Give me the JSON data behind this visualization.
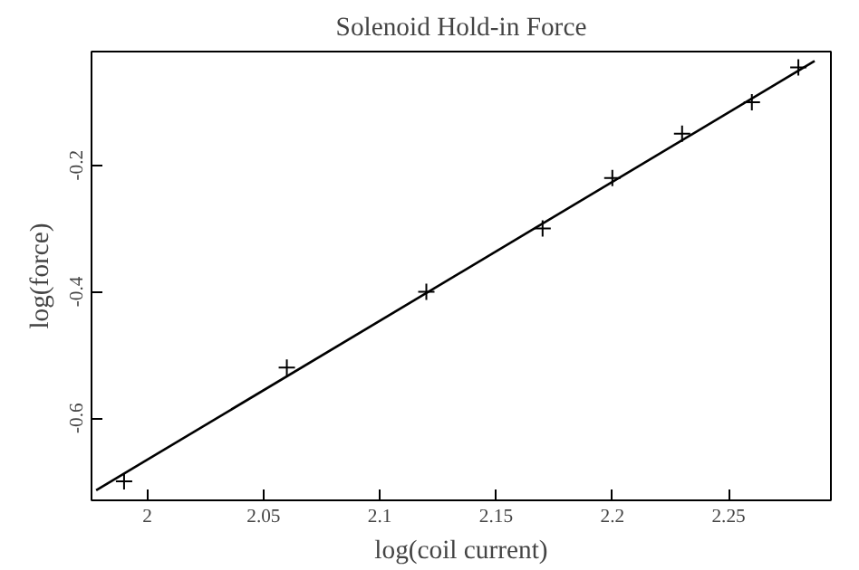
{
  "chart_data": {
    "type": "scatter",
    "title": "Solenoid Hold-in Force",
    "xlabel": "log(coil current)",
    "ylabel": "log(force)",
    "xlim": [
      1.976,
      2.294
    ],
    "ylim": [
      -0.73,
      -0.02
    ],
    "xticks": [
      2,
      2.05,
      2.1,
      2.15,
      2.2,
      2.25
    ],
    "yticks": [
      -0.6,
      -0.4,
      -0.2
    ],
    "grid": false,
    "marker": "cross",
    "series": [
      {
        "color": "#000000",
        "x": [
          1.99,
          2.06,
          2.12,
          2.17,
          2.2,
          2.23,
          2.26,
          2.28
        ],
        "values": [
          -0.7,
          -0.52,
          -0.4,
          -0.3,
          -0.22,
          -0.15,
          -0.1,
          -0.045
        ]
      },
      {
        "type": "line",
        "marker": "none",
        "color": "#000000",
        "x": [
          1.978,
          2.287
        ],
        "values": [
          -0.714,
          -0.035
        ]
      }
    ]
  }
}
